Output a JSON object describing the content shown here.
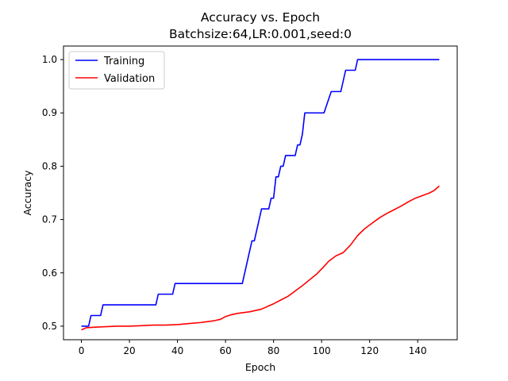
{
  "chart_data": {
    "type": "line",
    "title": "Accuracy vs. Epoch",
    "subtitle": "Batchsize:64,LR:0.001,seed:0",
    "xlabel": "Epoch",
    "ylabel": "Accuracy",
    "xlim": [
      -7.45,
      156.45
    ],
    "ylim": [
      0.4746,
      1.0254
    ],
    "xticks": [
      0,
      20,
      40,
      60,
      80,
      100,
      120,
      140
    ],
    "yticks": [
      0.5,
      0.6,
      0.7,
      0.8,
      0.9,
      1.0
    ],
    "grid": false,
    "legend_position": "top-left",
    "series": [
      {
        "name": "Training",
        "color": "#0000ff",
        "points": [
          [
            0,
            0.5
          ],
          [
            3,
            0.5
          ],
          [
            4,
            0.52
          ],
          [
            8,
            0.52
          ],
          [
            9,
            0.54
          ],
          [
            31,
            0.54
          ],
          [
            32,
            0.56
          ],
          [
            38,
            0.56
          ],
          [
            39,
            0.58
          ],
          [
            67,
            0.58
          ],
          [
            69,
            0.62
          ],
          [
            71,
            0.66
          ],
          [
            72,
            0.66
          ],
          [
            75,
            0.72
          ],
          [
            78,
            0.72
          ],
          [
            79,
            0.74
          ],
          [
            80,
            0.74
          ],
          [
            81,
            0.78
          ],
          [
            82,
            0.78
          ],
          [
            83,
            0.8
          ],
          [
            84,
            0.8
          ],
          [
            85,
            0.82
          ],
          [
            89,
            0.82
          ],
          [
            90,
            0.84
          ],
          [
            91,
            0.84
          ],
          [
            92,
            0.86
          ],
          [
            93,
            0.9
          ],
          [
            101,
            0.9
          ],
          [
            104,
            0.94
          ],
          [
            108,
            0.94
          ],
          [
            110,
            0.98
          ],
          [
            114,
            0.98
          ],
          [
            115,
            1.0
          ],
          [
            149,
            1.0
          ]
        ]
      },
      {
        "name": "Validation",
        "color": "#ff0000",
        "points": [
          [
            0,
            0.493
          ],
          [
            2,
            0.497
          ],
          [
            5,
            0.498
          ],
          [
            10,
            0.499
          ],
          [
            15,
            0.5
          ],
          [
            20,
            0.5
          ],
          [
            25,
            0.501
          ],
          [
            30,
            0.502
          ],
          [
            35,
            0.502
          ],
          [
            40,
            0.503
          ],
          [
            45,
            0.505
          ],
          [
            50,
            0.507
          ],
          [
            55,
            0.51
          ],
          [
            58,
            0.513
          ],
          [
            60,
            0.518
          ],
          [
            62,
            0.521
          ],
          [
            65,
            0.524
          ],
          [
            70,
            0.527
          ],
          [
            75,
            0.532
          ],
          [
            78,
            0.538
          ],
          [
            80,
            0.542
          ],
          [
            83,
            0.549
          ],
          [
            86,
            0.556
          ],
          [
            89,
            0.566
          ],
          [
            92,
            0.576
          ],
          [
            95,
            0.587
          ],
          [
            98,
            0.598
          ],
          [
            101,
            0.612
          ],
          [
            103,
            0.622
          ],
          [
            106,
            0.632
          ],
          [
            109,
            0.638
          ],
          [
            112,
            0.652
          ],
          [
            115,
            0.67
          ],
          [
            118,
            0.683
          ],
          [
            121,
            0.693
          ],
          [
            124,
            0.703
          ],
          [
            127,
            0.711
          ],
          [
            130,
            0.718
          ],
          [
            133,
            0.725
          ],
          [
            136,
            0.733
          ],
          [
            139,
            0.74
          ],
          [
            142,
            0.745
          ],
          [
            145,
            0.75
          ],
          [
            147,
            0.755
          ],
          [
            149,
            0.763
          ]
        ]
      }
    ]
  }
}
